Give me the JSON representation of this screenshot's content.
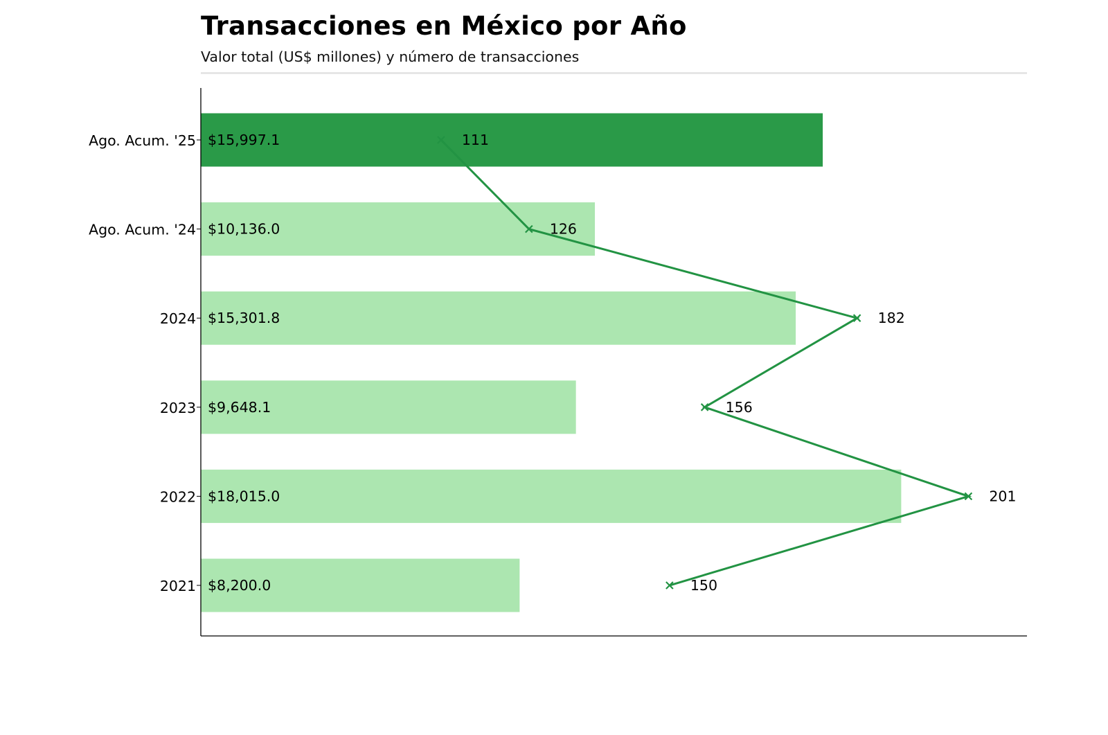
{
  "header": {
    "title": "Transacciones en México por Año",
    "subtitle": "Valor total (US$ millones) y número de transacciones"
  },
  "colors": {
    "highlight_bar": "#2a9a48",
    "bar": "#ace6b0",
    "line": "#229343",
    "axis": "#000000",
    "divider": "#e6e6e6"
  },
  "chart_data": {
    "type": "bar",
    "orientation": "horizontal",
    "title": "Transacciones en México por Año",
    "subtitle": "Valor total (US$ millones) y número de transacciones",
    "categories": [
      "Ago. Acum. '25",
      "Ago. Acum. '24",
      "2024",
      "2023",
      "2022",
      "2021"
    ],
    "highlight_category": "Ago. Acum. '25",
    "series": [
      {
        "type": "bar",
        "values": [
          15997.1,
          10136.0,
          15301.8,
          9648.1,
          18015.0,
          8200.0
        ],
        "labels": [
          "$15,997.1",
          "$10,136.0",
          "$15,301.8",
          "$9,648.1",
          "$18,015.0",
          "$8,200.0"
        ]
      },
      {
        "type": "line",
        "marker": "x",
        "values": [
          111,
          126,
          182,
          156,
          201,
          150
        ],
        "labels": [
          "111",
          "126",
          "182",
          "156",
          "201",
          "150"
        ]
      }
    ],
    "value_axis_range": [
      0,
      21250
    ],
    "count_axis_range": [
      70,
      211
    ],
    "grid": false,
    "legend": "none"
  }
}
